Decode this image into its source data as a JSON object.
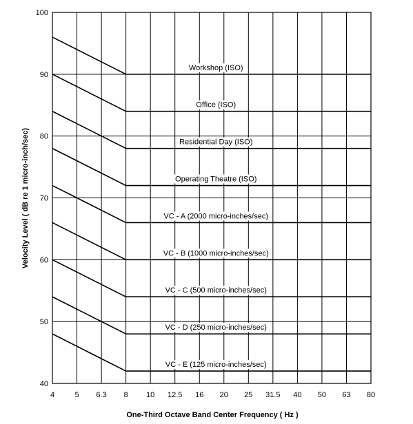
{
  "chart_data": {
    "type": "line",
    "xlabel": "One-Third Octave Band Center Frequency ( Hz )",
    "ylabel": "Velocity Level ( dB re 1 micro-inch/sec)",
    "x_ticks": [
      "4",
      "5",
      "6.3",
      "8",
      "10",
      "12.5",
      "16",
      "20",
      "25",
      "31.5",
      "40",
      "50",
      "63",
      "80"
    ],
    "y_ticks": [
      40,
      50,
      60,
      70,
      80,
      90,
      100
    ],
    "ylim": [
      40,
      100
    ],
    "grid": true,
    "series": [
      {
        "name": "Workshop (ISO)",
        "points": [
          [
            "4",
            96
          ],
          [
            "8",
            90
          ],
          [
            "80",
            90
          ]
        ]
      },
      {
        "name": "Office (ISO)",
        "points": [
          [
            "4",
            90
          ],
          [
            "8",
            84
          ],
          [
            "80",
            84
          ]
        ]
      },
      {
        "name": "Residential Day (ISO)",
        "points": [
          [
            "4",
            84
          ],
          [
            "8",
            78
          ],
          [
            "80",
            78
          ]
        ]
      },
      {
        "name": "Operating Theatre (ISO)",
        "points": [
          [
            "4",
            78
          ],
          [
            "8",
            72
          ],
          [
            "80",
            72
          ]
        ]
      },
      {
        "name": "VC - A (2000 micro-inches/sec)",
        "points": [
          [
            "4",
            72
          ],
          [
            "8",
            66
          ],
          [
            "80",
            66
          ]
        ]
      },
      {
        "name": "VC - B (1000 micro-inches/sec)",
        "points": [
          [
            "4",
            66
          ],
          [
            "8",
            60
          ],
          [
            "80",
            60
          ]
        ]
      },
      {
        "name": "VC - C (500 micro-inches/sec)",
        "points": [
          [
            "4",
            60
          ],
          [
            "8",
            54
          ],
          [
            "80",
            54
          ]
        ]
      },
      {
        "name": "VC - D (250 micro-inches/sec)",
        "points": [
          [
            "4",
            54
          ],
          [
            "8",
            48
          ],
          [
            "80",
            48
          ]
        ]
      },
      {
        "name": "VC - E (125 micro-inches/sec)",
        "points": [
          [
            "4",
            48
          ],
          [
            "8",
            42
          ],
          [
            "80",
            42
          ]
        ]
      }
    ]
  }
}
